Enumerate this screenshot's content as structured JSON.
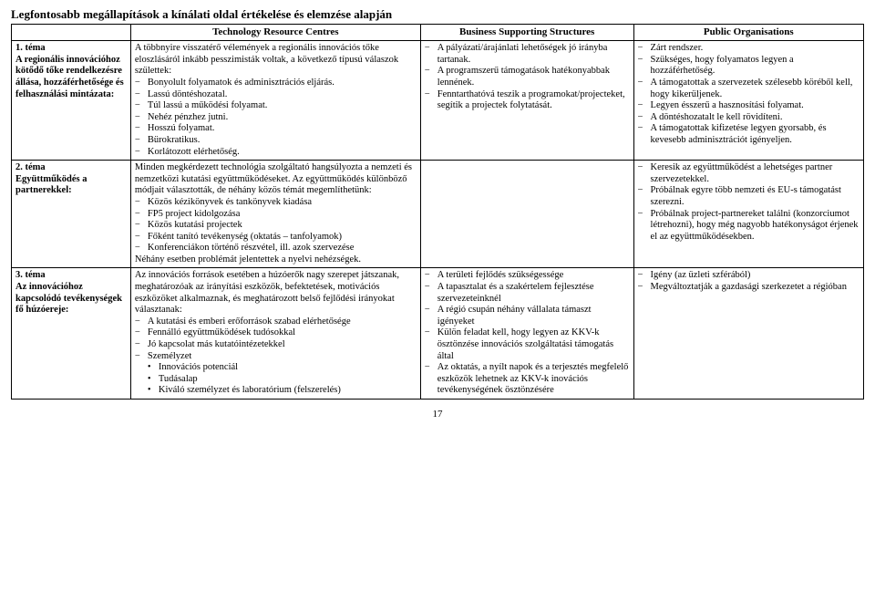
{
  "title": "Legfontosabb megállapítások a kínálati oldal értékelése és elemzése alapján",
  "headers": {
    "blank": "",
    "trc": "Technology Resource Centres",
    "bss": "Business Supporting Structures",
    "po": "Public Organisations"
  },
  "rows": [
    {
      "topic_num": "1. téma",
      "topic_text": "A regionális innovációhoz kötődő tőke rendelkezésre állása, hozzáférhetősége és felhasználási mintázata:",
      "trc_intro": "A többnyire visszatérő vélemények a regionális innovációs tőke eloszlásáról inkább pesszimisták voltak, a következő típusú válaszok születtek:",
      "trc_items": [
        "Bonyolult folyamatok és adminisztrációs eljárás.",
        "Lassú döntéshozatal.",
        "Túl lassú a működési folyamat.",
        "Nehéz pénzhez jutni.",
        "Hosszú folyamat.",
        "Bürokratikus.",
        "Korlátozott elérhetőség."
      ],
      "bss_items": [
        "A pályázati/árajánlati lehetőségek jó irányba tartanak.",
        "A programszerű támogatások hatékonyabbak lennének.",
        "Fenntarthatóvá teszik a programokat/projecteket, segítik a projectek folytatását."
      ],
      "po_items": [
        "Zárt rendszer.",
        "Szükséges, hogy folyamatos legyen a hozzáférhetőség.",
        "A támogatottak a szervezetek szélesebb köréből kell, hogy kikerüljenek.",
        "Legyen ésszerű a hasznosítási folyamat.",
        "A döntéshozatalt le kell rövidíteni.",
        "A támogatottak kifizetése legyen gyorsabb, és kevesebb adminisztrációt igényeljen."
      ]
    },
    {
      "topic_num": "2. téma",
      "topic_text": "Együttműködés a partnerekkel:",
      "trc_intro": "Minden megkérdezett technológia szolgáltató hangsúlyozta a nemzeti és nemzetközi kutatási együttműködéseket. Az együttműködés különböző módjait választották, de néhány közös témát megemlíthetünk:",
      "trc_items": [
        "Közös kézikönyvek és tankönyvek kiadása",
        "FP5 project kidolgozása",
        "Közös kutatási projectek",
        "Főként tanító tevékenység (oktatás – tanfolyamok)",
        "Konferenciákon történő részvétel, ill. azok szervezése"
      ],
      "trc_tail": "Néhány esetben problémát jelentettek a nyelvi nehézségek.",
      "bss_items": [],
      "po_items": [
        "Keresik az együttműködést a lehetséges partner szervezetekkel.",
        "Próbálnak egyre több nemzeti és EU-s támogatást szerezni.",
        "Próbálnak project-partnereket találni (konzorciumot létrehozni), hogy még nagyobb hatékonyságot érjenek el az együttműködésekben."
      ]
    },
    {
      "topic_num": "3. téma",
      "topic_text": "Az innovációhoz kapcsolódó tevékenységek fő húzóereje:",
      "trc_intro": "Az innovációs források esetében a húzóerők nagy szerepet játszanak, meghatározóak az irányítási eszközök, befektetések, motivációs eszközöket alkalmaznak, és meghatározott belső fejlődési irányokat választanak:",
      "trc_items": [
        "A kutatási és emberi erőforrások szabad elérhetősége",
        "Fennálló együttműködések tudósokkal",
        "Jó kapcsolat más kutatóintézetekkel",
        "Személyzet"
      ],
      "trc_bullets": [
        "Innovációs potenciál",
        "Tudásalap",
        "Kiváló személyzet és laboratórium (felszerelés)"
      ],
      "bss_items": [
        "A területi fejlődés szükségessége",
        "A tapasztalat és a szakértelem fejlesztése szervezeteinknél",
        "A régió csupán néhány vállalata támaszt igényeket",
        "Külön feladat kell, hogy legyen az KKV-k ösztönzése innovációs szolgáltatási támogatás által",
        "Az oktatás, a nyílt napok és a terjesztés megfelelő eszközök lehetnek az KKV-k inovációs tevékenységének ösztönzésére"
      ],
      "po_items": [
        "Igény (az üzleti szférából)",
        "Megváltoztatják a gazdasági szerkezetet a régióban"
      ]
    }
  ],
  "page_number": "17"
}
